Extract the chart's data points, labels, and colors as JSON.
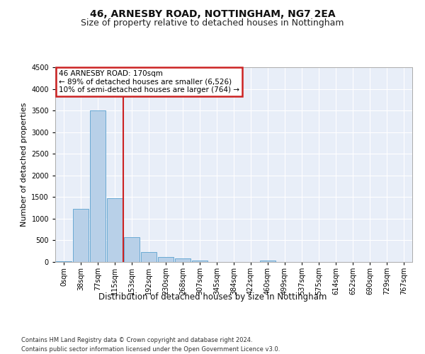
{
  "title": "46, ARNESBY ROAD, NOTTINGHAM, NG7 2EA",
  "subtitle": "Size of property relative to detached houses in Nottingham",
  "xlabel": "Distribution of detached houses by size in Nottingham",
  "ylabel": "Number of detached properties",
  "bar_color": "#b8d0e8",
  "bar_edge_color": "#6aaad4",
  "highlight_color": "#cc2222",
  "background_color": "#e8eef8",
  "grid_color": "#ffffff",
  "categories": [
    "0sqm",
    "38sqm",
    "77sqm",
    "115sqm",
    "153sqm",
    "192sqm",
    "230sqm",
    "268sqm",
    "307sqm",
    "345sqm",
    "384sqm",
    "422sqm",
    "460sqm",
    "499sqm",
    "537sqm",
    "575sqm",
    "614sqm",
    "652sqm",
    "690sqm",
    "729sqm",
    "767sqm"
  ],
  "values": [
    18,
    1220,
    3500,
    1470,
    580,
    235,
    115,
    80,
    30,
    5,
    5,
    0,
    40,
    0,
    0,
    0,
    0,
    0,
    0,
    0,
    0
  ],
  "vline_x": 3.5,
  "property_label": "46 ARNESBY ROAD: 170sqm",
  "annotation_line1": "← 89% of detached houses are smaller (6,526)",
  "annotation_line2": "10% of semi-detached houses are larger (764) →",
  "ylim": [
    0,
    4500
  ],
  "yticks": [
    0,
    500,
    1000,
    1500,
    2000,
    2500,
    3000,
    3500,
    4000,
    4500
  ],
  "footer_line1": "Contains HM Land Registry data © Crown copyright and database right 2024.",
  "footer_line2": "Contains public sector information licensed under the Open Government Licence v3.0.",
  "title_fontsize": 10,
  "subtitle_fontsize": 9,
  "ylabel_fontsize": 8,
  "xlabel_fontsize": 8.5,
  "tick_fontsize": 7,
  "annotation_fontsize": 7.5,
  "footer_fontsize": 6
}
